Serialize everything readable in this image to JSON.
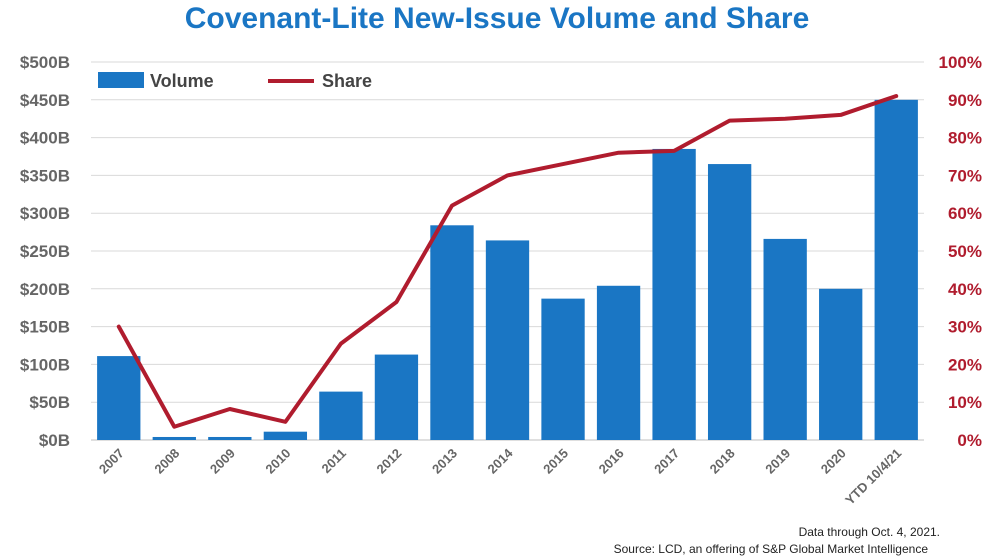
{
  "chart_data": {
    "type": "bar",
    "title": "Covenant-Lite New-Issue Volume and Share",
    "categories": [
      "2007",
      "2008",
      "2009",
      "2010",
      "2011",
      "2012",
      "2013",
      "2014",
      "2015",
      "2016",
      "2017",
      "2018",
      "2019",
      "2020",
      "YTD 10/4/21"
    ],
    "series": [
      {
        "name": "Volume",
        "type": "bar",
        "axis": "left",
        "color": "#1a76c4",
        "values": [
          111,
          4,
          4,
          11,
          64,
          113,
          284,
          264,
          187,
          204,
          385,
          365,
          266,
          200,
          450
        ]
      },
      {
        "name": "Share",
        "type": "line",
        "axis": "right",
        "color": "#b01c2e",
        "values": [
          30,
          3.5,
          8.2,
          4.8,
          25.5,
          36.5,
          62,
          70,
          73,
          76,
          76.5,
          84.5,
          85,
          86,
          91
        ]
      }
    ],
    "y_left": {
      "ylim": [
        0,
        500
      ],
      "ticks": [
        0,
        50,
        100,
        150,
        200,
        250,
        300,
        350,
        400,
        450,
        500
      ],
      "tick_labels": [
        "$0B",
        "$50B",
        "$100B",
        "$150B",
        "$200B",
        "$250B",
        "$300B",
        "$350B",
        "$400B",
        "$450B",
        "$500B"
      ]
    },
    "y_right": {
      "ylim": [
        0,
        100
      ],
      "ticks": [
        0,
        10,
        20,
        30,
        40,
        50,
        60,
        70,
        80,
        90,
        100
      ],
      "tick_labels": [
        "0%",
        "10%",
        "20%",
        "30%",
        "40%",
        "50%",
        "60%",
        "70%",
        "80%",
        "90%",
        "100%"
      ]
    },
    "legend": {
      "placement": "top-left",
      "entries": [
        "Volume",
        "Share"
      ]
    },
    "grid": true,
    "footnote": [
      "Data through Oct. 4, 2021.",
      "Source: LCD, an offering of S&P Global Market Intelligence"
    ]
  }
}
